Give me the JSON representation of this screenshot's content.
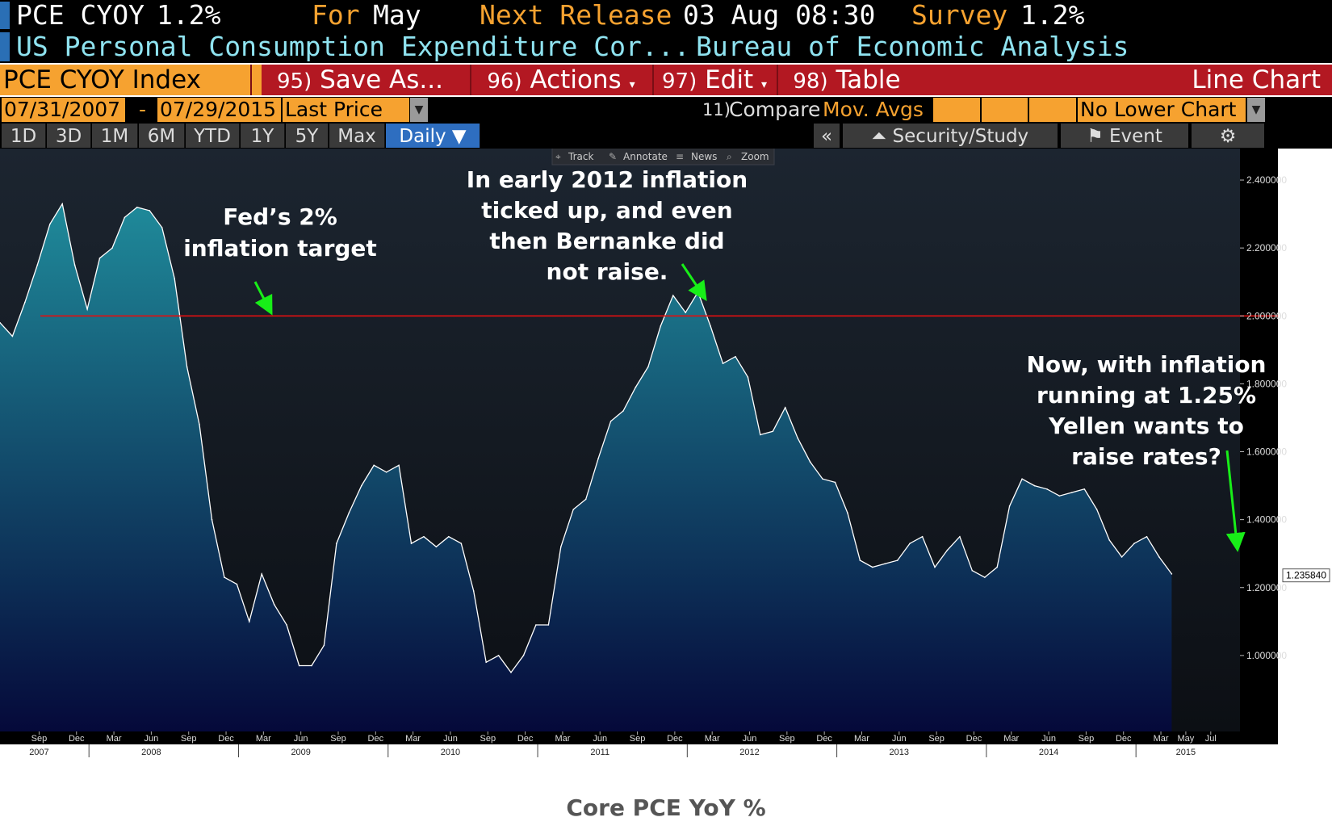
{
  "header": {
    "ticker": "PCE CYOY",
    "last_value": "1.2%",
    "for_label": "For",
    "for_value": "May",
    "next_release_label": "Next Release",
    "next_release_value": "03 Aug 08:30",
    "survey_label": "Survey",
    "survey_value": "1.2%",
    "description": "US Personal Consumption Expenditure Cor...",
    "source": "Bureau of Economic Analysis"
  },
  "toolbar": {
    "index_name": "PCE CYOY Index",
    "save_num": "95)",
    "save_label": "Save As...",
    "actions_num": "96)",
    "actions_label": "Actions",
    "edit_num": "97)",
    "edit_label": "Edit",
    "table_num": "98)",
    "table_label": "Table",
    "chart_type": "Line Chart",
    "date_start": "07/31/2007",
    "date_sep": "-",
    "date_end": "07/29/2015",
    "field": "Last Price",
    "compare_num": "11)",
    "compare_label": "Compare",
    "mov_avgs": "Mov. Avgs",
    "lower_chart": "No Lower Chart",
    "periods": [
      "1D",
      "3D",
      "1M",
      "6M",
      "YTD",
      "1Y",
      "5Y",
      "Max"
    ],
    "frequency": "Daily",
    "collapse": "«",
    "security_study": "Security/Study",
    "event": "Event",
    "mini_tools": [
      "Track",
      "Annotate",
      "News",
      "Zoom"
    ]
  },
  "annotations": {
    "fed_target": "Fed’s 2%\ninflation target",
    "early_2012": "In early 2012 inflation\nticked up, and even\nthen Bernanke did\nnot raise.",
    "now": "Now, with inflation\nrunning at 1.25%\nYellen wants to\nraise rates?"
  },
  "caption": "Core PCE YoY %",
  "colors": {
    "line": "#ffffff",
    "area_top": "#1f8a9a",
    "area_bottom": "#05093a",
    "target_line": "#e01010",
    "arrow": "#18ee18",
    "orange": "#f6a230",
    "red_bar": "#b31822"
  },
  "chart_data": {
    "type": "area",
    "title": "",
    "xlabel": "",
    "ylabel": "",
    "ylim": [
      0.8,
      2.45
    ],
    "yticks": [
      "2.400000",
      "2.200000",
      "2.000000",
      "1.800000",
      "1.600000",
      "1.400000",
      "1.200000",
      "1.000000"
    ],
    "ytick_values": [
      2.4,
      2.2,
      2.0,
      1.8,
      1.6,
      1.4,
      1.2,
      1.0
    ],
    "last_value_label": "1.235840",
    "last_value": 1.23584,
    "reference_line": 2.0,
    "xtick_months": [
      "Sep",
      "Dec",
      "Mar",
      "Jun",
      "Sep",
      "Dec",
      "Mar",
      "Jun",
      "Sep",
      "Dec",
      "Mar",
      "Jun",
      "Sep",
      "Dec",
      "Mar",
      "Jun",
      "Sep",
      "Dec",
      "Mar",
      "Jun",
      "Sep",
      "Dec",
      "Mar",
      "Jun",
      "Sep",
      "Dec",
      "Mar",
      "Jun",
      "Sep",
      "Dec",
      "Mar",
      "May",
      "Jul"
    ],
    "xtick_month_index": [
      1,
      4,
      7,
      10,
      13,
      16,
      19,
      22,
      25,
      28,
      31,
      34,
      37,
      40,
      43,
      46,
      49,
      52,
      55,
      58,
      61,
      64,
      67,
      70,
      73,
      76,
      79,
      82,
      85,
      88,
      91,
      93,
      95
    ],
    "year_labels": [
      "2007",
      "2008",
      "2009",
      "2010",
      "2011",
      "2012",
      "2013",
      "2014",
      "2015"
    ],
    "year_label_index": [
      1,
      10,
      22,
      34,
      46,
      58,
      70,
      82,
      93
    ],
    "year_boundary_index": [
      5,
      17,
      29,
      41,
      53,
      65,
      77,
      89
    ],
    "x_start_month": "2007-08",
    "x_end_month": "2015-07",
    "x_last_data_month": "2015-06",
    "x": [
      "2007-08",
      "2007-09",
      "2007-10",
      "2007-11",
      "2007-12",
      "2008-01",
      "2008-02",
      "2008-03",
      "2008-04",
      "2008-05",
      "2008-06",
      "2008-07",
      "2008-08",
      "2008-09",
      "2008-10",
      "2008-11",
      "2008-12",
      "2009-01",
      "2009-02",
      "2009-03",
      "2009-04",
      "2009-05",
      "2009-06",
      "2009-07",
      "2009-08",
      "2009-09",
      "2009-10",
      "2009-11",
      "2009-12",
      "2010-01",
      "2010-02",
      "2010-03",
      "2010-04",
      "2010-05",
      "2010-06",
      "2010-07",
      "2010-08",
      "2010-09",
      "2010-10",
      "2010-11",
      "2010-12",
      "2011-01",
      "2011-02",
      "2011-03",
      "2011-04",
      "2011-05",
      "2011-06",
      "2011-07",
      "2011-08",
      "2011-09",
      "2011-10",
      "2011-11",
      "2011-12",
      "2012-01",
      "2012-02",
      "2012-03",
      "2012-04",
      "2012-05",
      "2012-06",
      "2012-07",
      "2012-08",
      "2012-09",
      "2012-10",
      "2012-11",
      "2012-12",
      "2013-01",
      "2013-02",
      "2013-03",
      "2013-04",
      "2013-05",
      "2013-06",
      "2013-07",
      "2013-08",
      "2013-09",
      "2013-10",
      "2013-11",
      "2013-12",
      "2014-01",
      "2014-02",
      "2014-03",
      "2014-04",
      "2014-05",
      "2014-06",
      "2014-07",
      "2014-08",
      "2014-09",
      "2014-10",
      "2014-11",
      "2014-12",
      "2015-01",
      "2015-02",
      "2015-03",
      "2015-04",
      "2015-05",
      "2015-06"
    ],
    "values": [
      1.98,
      1.94,
      2.04,
      2.15,
      2.27,
      2.33,
      2.15,
      2.02,
      2.17,
      2.2,
      2.29,
      2.32,
      2.31,
      2.26,
      2.11,
      1.85,
      1.68,
      1.4,
      1.23,
      1.21,
      1.1,
      1.24,
      1.15,
      1.09,
      0.97,
      0.97,
      1.03,
      1.33,
      1.42,
      1.5,
      1.56,
      1.54,
      1.56,
      1.33,
      1.35,
      1.32,
      1.35,
      1.33,
      1.19,
      0.98,
      1.0,
      0.95,
      1.0,
      1.09,
      1.09,
      1.32,
      1.43,
      1.46,
      1.58,
      1.69,
      1.72,
      1.79,
      1.85,
      1.97,
      2.06,
      2.01,
      2.07,
      1.97,
      1.86,
      1.88,
      1.82,
      1.65,
      1.66,
      1.73,
      1.64,
      1.57,
      1.52,
      1.51,
      1.42,
      1.28,
      1.26,
      1.27,
      1.28,
      1.33,
      1.35,
      1.26,
      1.31,
      1.35,
      1.25,
      1.23,
      1.26,
      1.44,
      1.52,
      1.5,
      1.49,
      1.47,
      1.48,
      1.49,
      1.43,
      1.34,
      1.29,
      1.33,
      1.35,
      1.29,
      1.24
    ]
  }
}
